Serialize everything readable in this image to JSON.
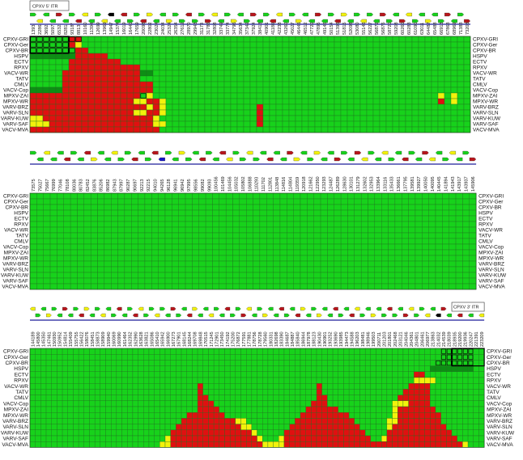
{
  "colors": {
    "green": "#17d21b",
    "dark_green": "#0d8f14",
    "red": "#e01010",
    "yellow": "#f2f20c",
    "blue": "#1515c8",
    "black": "#000000",
    "grid_line": "#1f6e1f"
  },
  "strains": [
    "CPXV-GRI",
    "CPXV-Ger",
    "CPXV-BR",
    "HSPV",
    "ECTV",
    "RPXV",
    "VACV-WR",
    "TATV",
    "CMLV",
    "VACV-Cop",
    "MPXV-ZAI",
    "MPXV-WR",
    "VARV-BRZ",
    "VARV-SLN",
    "VARV-KUW",
    "VARV-SAF",
    "VACV-MVA"
  ],
  "itr_left": "CPXV 5' ITR",
  "itr_right": "CPXV 3' ITR",
  "panels": [
    {
      "columns": [
        "1393",
        "2286",
        "3692",
        "5097",
        "6532",
        "8281",
        "9318*",
        "8813",
        "10160",
        "11394",
        "12699",
        "13969",
        "14947",
        "15374",
        "16019",
        "16440",
        "17659",
        "20098",
        "22802",
        "23024",
        "24034",
        "25324",
        "26354",
        "27612",
        "28970",
        "29943",
        "31173",
        "31786",
        "32808",
        "33749",
        "33774",
        "34796",
        "35634",
        "37342",
        "37924",
        "38413",
        "40901",
        "41180",
        "42238",
        "43260",
        "45027",
        "46445",
        "46512",
        "47720",
        "47895",
        "49145",
        "50154",
        "51395",
        "51815",
        "52098",
        "53080",
        "55146",
        "56227",
        "56872",
        "56876",
        "58720",
        "59208",
        "60260",
        "60283",
        "61090",
        "63011",
        "64487",
        "65488",
        "66913",
        "67863",
        "68969",
        "71383",
        "73203"
      ],
      "arrows": [
        "right",
        "left",
        "left",
        "left",
        "right",
        "left",
        "right",
        "left",
        "left",
        "left",
        "right",
        "left",
        "black",
        "left",
        "left",
        "right",
        "right",
        "left",
        "right",
        "left",
        "left",
        "right",
        "right",
        "right",
        "left",
        "right",
        "right",
        "right",
        "left",
        "left",
        "right",
        "right",
        "left",
        "right",
        "right",
        "left",
        "right",
        "left",
        "left",
        "left",
        "right",
        "right",
        "left",
        "left",
        "right",
        "left",
        "right",
        "left",
        "right",
        "left",
        "right",
        "left",
        "right",
        "left",
        "right",
        "right",
        "left",
        "right",
        "left",
        "right",
        "left",
        "right",
        "left",
        "right",
        "right",
        "left",
        "right",
        "right"
      ]
    },
    {
      "columns": [
        "73575",
        "75027",
        "75667",
        "76999",
        "77046",
        "78108",
        "80036",
        "80783",
        "82452",
        "83876",
        "85206",
        "86982",
        "87943",
        "87997",
        "90287",
        "90697",
        "92213",
        "92215",
        "94010",
        "94265",
        "96128",
        "96941",
        "96942",
        "97995",
        "98556",
        "99082",
        "99093",
        "100456",
        "101469",
        "104456",
        "105032",
        "105802",
        "106888",
        "110293",
        "111702",
        "112801",
        "113848",
        "114816",
        "114804",
        "119359",
        "120918",
        "121662",
        "122950",
        "123293",
        "124487",
        "126289",
        "128630",
        "130101",
        "131279",
        "132602",
        "132953",
        "133964",
        "133116",
        "135433",
        "136661",
        "137795",
        "139581",
        "139927",
        "140050",
        "140095",
        "140445",
        "141894",
        "141943",
        "143917",
        "143937",
        "145906"
      ],
      "arrows": [
        "right",
        "left",
        "left",
        "left",
        "left",
        "left",
        "right",
        "left",
        "left",
        "right",
        "left",
        "left",
        "left",
        "right",
        "right",
        "left",
        "left",
        "right",
        "left",
        "blue",
        "right",
        "left",
        "right",
        "right",
        "left",
        "left",
        "right",
        "left",
        "left",
        "left",
        "right",
        "right",
        "left",
        "right",
        "left",
        "left",
        "left",
        "left",
        "right",
        "right",
        "left",
        "right",
        "right",
        "left",
        "left",
        "right",
        "right",
        "left",
        "right",
        "left",
        "right",
        "left",
        "left",
        "right",
        "left",
        "left",
        "right",
        "left",
        "right",
        "left",
        "left",
        "right",
        "left",
        "left",
        "right",
        "right"
      ]
    },
    {
      "columns": [
        "144189",
        "145800",
        "145350",
        "147461",
        "150930",
        "150952",
        "154814",
        "155409",
        "155755",
        "156422",
        "158076",
        "158451",
        "158873",
        "158909",
        "159940",
        "160069",
        "160990",
        "161464",
        "162352",
        "162990",
        "163628",
        "163821",
        "165086",
        "165410",
        "165942",
        "166900",
        "167273",
        "167901",
        "168145",
        "168244",
        "169708",
        "169848",
        "170515",
        "171245",
        "172901",
        "173450",
        "174192",
        "175200",
        "176872",
        "177591",
        "177881",
        "178756",
        "178728",
        "179560",
        "180331",
        "182698",
        "183390",
        "184687",
        "184887",
        "185840",
        "186944",
        "187978",
        "188123",
        "190430",
        "190901",
        "193252",
        "193690",
        "193985",
        "194473",
        "194588",
        "196203",
        "198481",
        "198946",
        "199503",
        "200711",
        "201203",
        "201801",
        "202468",
        "203121",
        "204046",
        "204361",
        "204801",
        "206461",
        "206977",
        "213863",
        "214032",
        "214539",
        "218039",
        "218935",
        "219200",
        "219936",
        "220247",
        "221391",
        "223209"
      ],
      "arrows": [
        "left",
        "right",
        "left",
        "right",
        "right",
        "left",
        "right",
        "left",
        "right",
        "left",
        "right",
        "left",
        "right",
        "left",
        "left",
        "right",
        "left",
        "left",
        "right",
        "left",
        "left",
        "right",
        "right",
        "left",
        "right",
        "left",
        "right",
        "right",
        "left",
        "left",
        "right",
        "left",
        "left",
        "left",
        "right",
        "left",
        "left",
        "right",
        "right",
        "right",
        "left",
        "left",
        "right",
        "right",
        "left",
        "left",
        "left",
        "right",
        "left",
        "left",
        "right",
        "left",
        "right",
        "right",
        "left",
        "left",
        "left",
        "right",
        "left",
        "left",
        "left",
        "right",
        "left",
        "right",
        "left",
        "right",
        "left",
        "right",
        "left",
        "right",
        "left",
        "right",
        "right",
        "left",
        "left",
        "black",
        "right",
        "left",
        "right",
        "left",
        "right",
        "left",
        "right",
        "left"
      ]
    }
  ],
  "panel_data": [
    {
      "rows": [
        "HHHHHHOOGGGGGGGGGGGGGGGGGGGGGGGGGGGGGGGGGGGGGGGGGGGGGGGGGGGGGGGGGGGG",
        "HHHHHHRYGGGGGGGGGGGGGGGGGGGGGGGGGGGGGGGGGGGGGGGGGGGGGGGGGGGGGGGGGGGG",
        "HHHHHHHRRGGGGGGGGGGGGGGGGGGGGGGGGGGGGGGGGGGGGGGGGGGGGGGGGGGGGGGGGGGG",
        "DDDDDDDRRRRRGGGGGGGGGGGGGGGGGGGGGGGGGGGGGGGGGGGGGGGGGGGGGGGGGGGGGGGG",
        "GGGGGGRRRRRRRRGGGGGGGGGGGGGGGGGGGGGGGGGGGGGGGGGGGGGGGGGGGGGGGGGGGGGG",
        "GGGGGGRRRRRRRRRRRGGGGGGGGGGGGGGGGGGGGGGGGGGGGGGGGGGGGGGGGGGGGGGGGGGG",
        "GGGGGRRRRRRRRRRRRDDGGGGGGGGGGGGGGGGGGGGGGGGGGGGGGGGGGGGGGGGGGGGGGGGG",
        "GGGGGRRRRRRRRRRRRGGGGGGGGGGGGGGGGGGGGGGGGGGGGGGGGGGGGGGGGGGGGGGGGGGG",
        "GGGGGRRRRRRRRRRRRRRGGGGGGGGGGGGGGGGGGGGGGGGGGGGGGGGGGGGGGGGGGGGGGGGG",
        "DDDDDRRRRRRRRRRRRRRGGGGGGGGGGGGGGGGGGGGGGGGGGGGGGGGGGGGGGGGGGGGGGGGG",
        "RRRRRRRRRRRRRRRRRHYGGGGGGGGGGGGGGGGGGGGGGGGGGGGGGGGGGGGGGGGGGGGYGYGG",
        "RRRRRRRRRRRRRRRRYYRRYGGGGGGGGGGGGGGGGGGGGGGGGGGGGGGGGGGGGGGGGGGRGYGG",
        "RRRRRRRRRRRRRRRRRRYRYGGGGGGGGGGGGGGRGGGGGGGGGGGGGGGGGGGGGGGGGGGGGGGG",
        "RRRRRRRRRRRRRRRRYYRRYGGGGGGGGGGGGGGRGGGGGGGGGGGGGGGGGGGGGGGGGGGGGGGG",
        "YYRRRRRRRRRRRRRRRRRYGGGGGGGGGGGGGGGRGGGGGGGGGGGGGGGGGGGGGGGGGGGGGGGG",
        "YYYRRRRRRRRRRRRRRRRYYGGGGGGGGGGGGGGRGGGGGGGGGGGGGGGGGGGGGGGGGGGGGGGG",
        "RRRRRRRRRRRRRRRRRRRRGGGGGGGGGGGGGGGGGGGGGGGGGGGGGGGGGGGGGGGGGGGGGGGG"
      ]
    },
    {
      "rows": [
        "GGGGGGGGGGGGGGGGGGGGGGGGGGGGGGGGGGGGGGGGGGGGGGGGGGGGGGGGGGGGGGGGGG",
        "GGGGGGGGGGGGGGGGGGGGGGGGGGGGGGGGGGGGGGGGGGGGGGGGGGGGGGGGGGGGGGGGGG",
        "GGGGGGGGGGGGGGGGGGGGGGGGGGGGGGGGGGGGGGGGGGGGGGGGGGGGGGGGGGGGGGGGGG",
        "GGGGGGGGGGGGGGGGGGGGGGGGGGGGGGGGGGGGGGGGGGGGGGGGGGGGGGGGGGGGGGGGGG",
        "GGGGGGGGGGGGGGGGGGGGGGGGGGGGGGGGGGGGGGGGGGGGGGGGGGGGGGGGGGGGGGGGGG",
        "GGGGGGGGGGGGGGGGGGGGGGGGGGGGGGGGGGGGGGGGGGGGGGGGGGGGGGGGGGGGGGGGGG",
        "GGGGGGGGGGGGGGGGGGGGGGGGGGGGGGGGGGGGGGGGGGGGGGGGGGGGGGGGGGGGGGGGGG",
        "GGGGGGGGGGGGGGGGGGGGGGGGGGGGGGGGGGGGGGGGGGGGGGGGGGGGGGGGGGGGGGGGGG",
        "GGGGGGGGGGGGGGGGGGGGGGGGGGGGGGGGGGGGGGGGGGGGGGGGGGGGGGGGGGGGGGGGGG",
        "GGGGGGGGGGGGGGGGGGGGGGGGGGGGGGGGGGGGGGGGGGGGGGGGGGGGGGGGGGGGGGGGGG",
        "GGGGGGGGGGGGGGGGGGGGGGGGGGGGGGGGGGGGGGGGGGGGGGGGGGGGGGGGGGGGGGGGGG",
        "GGGGGGGGGGGGGGGGGGGGGGGGGGGGGGGGGGGGGGGGGGGGGGGGGGGGGGGGGGGGGGGGGG",
        "GGGGGGGGGGGGGGGGGGGGGGGGGGGGGGGGGGGGGGGGGGGGGGGGGGGGGGGGGGGGGGGGGG",
        "GGGGGGGGGGGGGGGGGGGGGGGGGGGGGGGGGGGGGGGGGGGGGGGGGGGGGGGGGGGGGGGGGG",
        "GGGGGGGGGGGGGGGGGGGGGGGGGGGGGGGGGGGGGGGGGGGGGGGGGGGGGGGGGGGGGGGGGG",
        "GGGGGGGGGGGGGGGGGGGGGGGGGGGGGGGGGGGGGGGGGGGGGGGGGGGGGGGGGGGGGGGGGG",
        "GGGGGGGGGGGGGGGGGGGGGGGGGGGGGGGGGGGGGGGGGGGGGGGGGGGGGGGGGGGGGGGGGG"
      ]
    },
    {
      "rows": [
        "GGGGGGGGGGGGGGGGGGGGGGGGGGGGGGGGGGGGGGGGGGGGGGGGGGGGGGGGGGGGGGGGGGGGGGGGGGGGHHHHHH",
        "GGGGGGGGGGGGGGGGGGGGGGGGGGGGGGGGGGGGGGGGGGGGGGGGGGGGGGGGGGGGGGGGGGGGGGGGGGGGHHHHHH",
        "GGGGGGGGGGGGGGGGGGGGGGGGGGGGGGGGGGGGGGGGGGGGGGGGGGGGGGGGGGGGGGGGGGGGGGGGGGGHHHHHHH",
        "GGGGGGGGGGGGGGGGGGGGGGGGGGGGGGGGGGGGGGGGGGGGGGGGGGGGGGGGGGGGGGGGGGGGGGGGGGDDDDDDDD",
        "GGGGGGGGGGGGGGGGGGGGGGGGGGGGGGGGGGGGGGGGGGGGGGGGGGGGGGGGGGGGGGGGGGGGGGGRRGGGGGGGGG",
        "GGGGGGGGGGGGGGGGGGGGGGGGGGGGGGGGGGGGGGGGGGGGGGGGGGGGGGGGGGGGGGGGGGGGGGGYYYYGGGGGGG",
        "GGGGGGGGGGGGGGGGGGGGGGGGGGGGGGGRGGGGGGGGGGGGGGGGGGGGGRGGGGGGGGGGGGGGGGRRRRGGGGGGGG",
        "GGGGGGGGGGGGGGGGGGGGGGGGGGGGGGGRGGGGGGGGGGGGGGGGGGGGGRGGGGGGGGGGGGGGGRRRRRGGGGGGGG",
        "GGGGGGGGGGGGGGGGGGGGGGGGGGGGGGGRRGGGGGGGGGGGGGGGGGGGGRRGGGGGGGGGGGGGRRRRRRGGGGGGGG",
        "GGGGGGGGGGGGGGGGGGGGGGGGGGGGGGGRRRGGGGGGGGGGGGGGGGGGRRRGGGGGGGGGGGGYYYRRRRGGGGGGGG",
        "GGGGGGGGGGGGGGGGGGGGGGGGGGGGGGGRRRRGGGGGGGGGGGGGGGGRRRRRRGGGGGGGGGGYRRRRRRRGGGGGGG",
        "GGGGGGGGGGGGGGGGGGGGGGGGGGGGGRRRRRRRGGGGGGGGGGGGGGRRRRRRRRRGGGGGGGGYRRRRRRRRGGGGGG",
        "GGGGGGGGGGGGGGGGGGGGGGGGGGGGRRRRRRRRRRYYGGGGGGGGGRRRRRRRRRRRGGGGGGYYRRRRRRRRGGGGGG",
        "GGGGGGGGGGGGGGGGGGGGGGGGGGGRRRRRRRRRRRRYYGGGGGGGRRRRRRRRRRRRRGGGGGYRRRRRRRRRRGGGGG",
        "GGGGGGGGGGGGGGGGGGGGGGGGGGRRRRRRRRRRRRRRRYGGGGGRRRRRRRRRRRRRRRGGGGRRRRRRRRRRRRGGGG",
        "GGGGGGGGGGGGGGGGGGGGGGGGGYRRRRRRRRRRRRRRRRYGGGYRRRRRRRRRRRRRRRRGGYRRRRRRRRRRRRRGGG",
        "GGGGGGGGGGGGGGGGGGGGGGGGYYRRRRRRRRRRRRRRRRRYYYYRRRRRRRRRRRRRRRRRRRRRRRRRRRRRRRRRYG"
      ]
    }
  ]
}
